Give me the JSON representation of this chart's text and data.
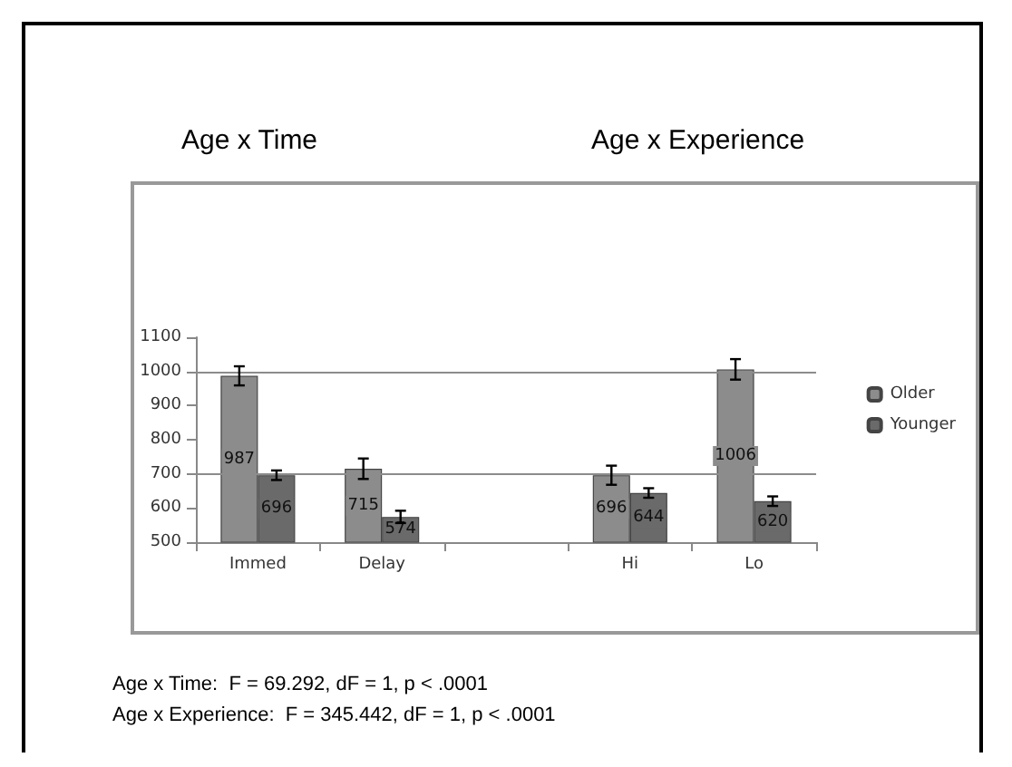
{
  "chart_data": {
    "type": "bar",
    "annotations": [
      "Age x Time",
      "Age x Experience",
      "Age x Time:  F = 69.292, dF = 1, p < .0001",
      "Age x Experience:  F = 345.442, dF = 1, p < .0001"
    ],
    "categories": [
      "Immed",
      "Delay",
      null,
      "Hi",
      "Lo"
    ],
    "series": [
      {
        "name": "Older",
        "color": "#8c8c8c",
        "values": [
          987,
          715,
          null,
          696,
          1006
        ],
        "errors": [
          28,
          30,
          null,
          28,
          30
        ]
      },
      {
        "name": "Younger",
        "color": "#6a6a6a",
        "values": [
          696,
          574,
          null,
          644,
          620
        ],
        "errors": [
          14,
          18,
          null,
          14,
          14
        ]
      }
    ],
    "ylim": [
      500,
      1100
    ],
    "yticks": [
      500,
      600,
      700,
      800,
      900,
      1000,
      1100
    ],
    "ref_lines": [
      {
        "axis": "y",
        "value": 700,
        "color": "#8c8c8c"
      },
      {
        "axis": "y",
        "value": 1000,
        "color": "#8c8c8c"
      }
    ],
    "grid": false,
    "legend": "right",
    "data_labels": true
  }
}
